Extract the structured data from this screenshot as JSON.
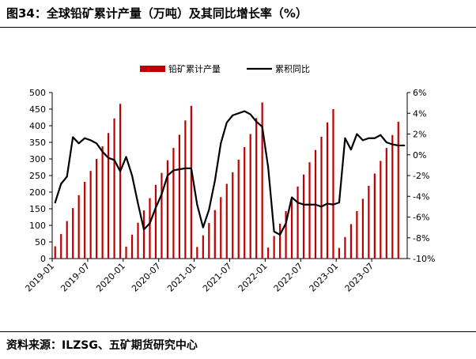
{
  "header": {
    "title": "图34：全球铅矿累计产量（万吨）及其同比增长率（%）"
  },
  "footer": {
    "source": "资料来源：ILZSG、五矿期货研究中心"
  },
  "chart_data": {
    "type": "bar+line",
    "title": "",
    "legend": {
      "position": "top-center",
      "items": [
        "铅矿累计产量",
        "累积同比"
      ]
    },
    "colors": {
      "bar": "#c00000",
      "line": "#000000"
    },
    "grid": false,
    "x_labels": [
      "2019-01",
      "2019-07",
      "2020-01",
      "2020-07",
      "2021-01",
      "2021-07",
      "2022-01",
      "2022-07",
      "2023-01",
      "2023-07"
    ],
    "y_left": {
      "min": 0,
      "max": 500,
      "ticks": [
        0,
        50,
        100,
        150,
        200,
        250,
        300,
        350,
        400,
        450,
        500
      ]
    },
    "y_right": {
      "min": -10,
      "max": 6,
      "ticks": [
        "-10%",
        "-8%",
        "-6%",
        "-4%",
        "-2%",
        "0%",
        "2%",
        "4%",
        "6%"
      ],
      "tick_values": [
        -10,
        -8,
        -6,
        -4,
        -2,
        0,
        2,
        4,
        6
      ]
    },
    "months": [
      "2019-01",
      "2019-02",
      "2019-03",
      "2019-04",
      "2019-05",
      "2019-06",
      "2019-07",
      "2019-08",
      "2019-09",
      "2019-10",
      "2019-11",
      "2019-12",
      "2020-01",
      "2020-02",
      "2020-03",
      "2020-04",
      "2020-05",
      "2020-06",
      "2020-07",
      "2020-08",
      "2020-09",
      "2020-10",
      "2020-11",
      "2020-12",
      "2021-01",
      "2021-02",
      "2021-03",
      "2021-04",
      "2021-05",
      "2021-06",
      "2021-07",
      "2021-08",
      "2021-09",
      "2021-10",
      "2021-11",
      "2021-12",
      "2022-01",
      "2022-02",
      "2022-03",
      "2022-04",
      "2022-05",
      "2022-06",
      "2022-07",
      "2022-08",
      "2022-09",
      "2022-10",
      "2022-11",
      "2022-12",
      "2023-01",
      "2023-02",
      "2023-03",
      "2023-04",
      "2023-05",
      "2023-06",
      "2023-07",
      "2023-08",
      "2023-09",
      "2023-10",
      "2023-11",
      "2023-12"
    ],
    "series": [
      {
        "name": "铅矿累计产量",
        "kind": "bar",
        "axis": "left",
        "values": [
          37,
          74,
          113,
          152,
          191,
          231,
          264,
          300,
          338,
          378,
          422,
          466,
          36,
          72,
          108,
          145,
          182,
          222,
          258,
          296,
          333,
          373,
          416,
          460,
          35,
          70,
          107,
          146,
          185,
          225,
          260,
          298,
          336,
          375,
          423,
          470,
          33,
          68,
          105,
          143,
          179,
          217,
          253,
          290,
          327,
          367,
          410,
          450,
          32,
          65,
          104,
          143,
          180,
          219,
          256,
          294,
          333,
          372,
          412,
          null
        ]
      },
      {
        "name": "累积同比",
        "kind": "line",
        "axis": "right",
        "values": [
          -4.6,
          -2.8,
          -2.1,
          1.7,
          1.1,
          1.6,
          1.4,
          1.1,
          0.3,
          -0.3,
          -0.5,
          -1.6,
          -0.2,
          -2.0,
          -4.7,
          -7.2,
          -6.6,
          -5.1,
          -3.8,
          -2.0,
          -1.5,
          -1.4,
          -1.3,
          -1.3,
          -4.8,
          -7.0,
          -5.3,
          -2.5,
          1.1,
          3.1,
          3.8,
          4.0,
          4.2,
          3.9,
          3.2,
          2.7,
          -1.2,
          -7.4,
          -7.7,
          -6.6,
          -4.1,
          -4.6,
          -4.8,
          -4.8,
          -4.8,
          -5.0,
          -4.7,
          -4.8,
          -4.6,
          1.6,
          0.5,
          2.0,
          1.4,
          1.6,
          1.6,
          1.9,
          1.2,
          1.0,
          0.9,
          0.9
        ]
      }
    ]
  }
}
